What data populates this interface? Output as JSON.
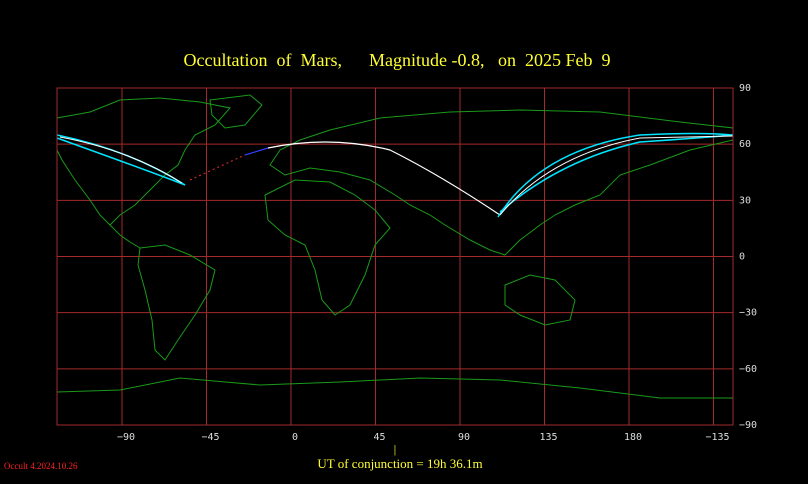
{
  "title": "Occultation  of  Mars,      Magnitude -0.8,   on  2025 Feb  9",
  "x_axis": {
    "labels": [
      "−90",
      "−45",
      "0",
      "45",
      "90",
      "135",
      "180",
      "−135"
    ]
  },
  "y_axis": {
    "labels": [
      "90",
      "60",
      "30",
      "0",
      "−30",
      "−60",
      "−90"
    ]
  },
  "marker": "|",
  "conjunction": "UT of conjunction = 19h 36.1m",
  "version": "Occult 4.2024.10.26"
}
